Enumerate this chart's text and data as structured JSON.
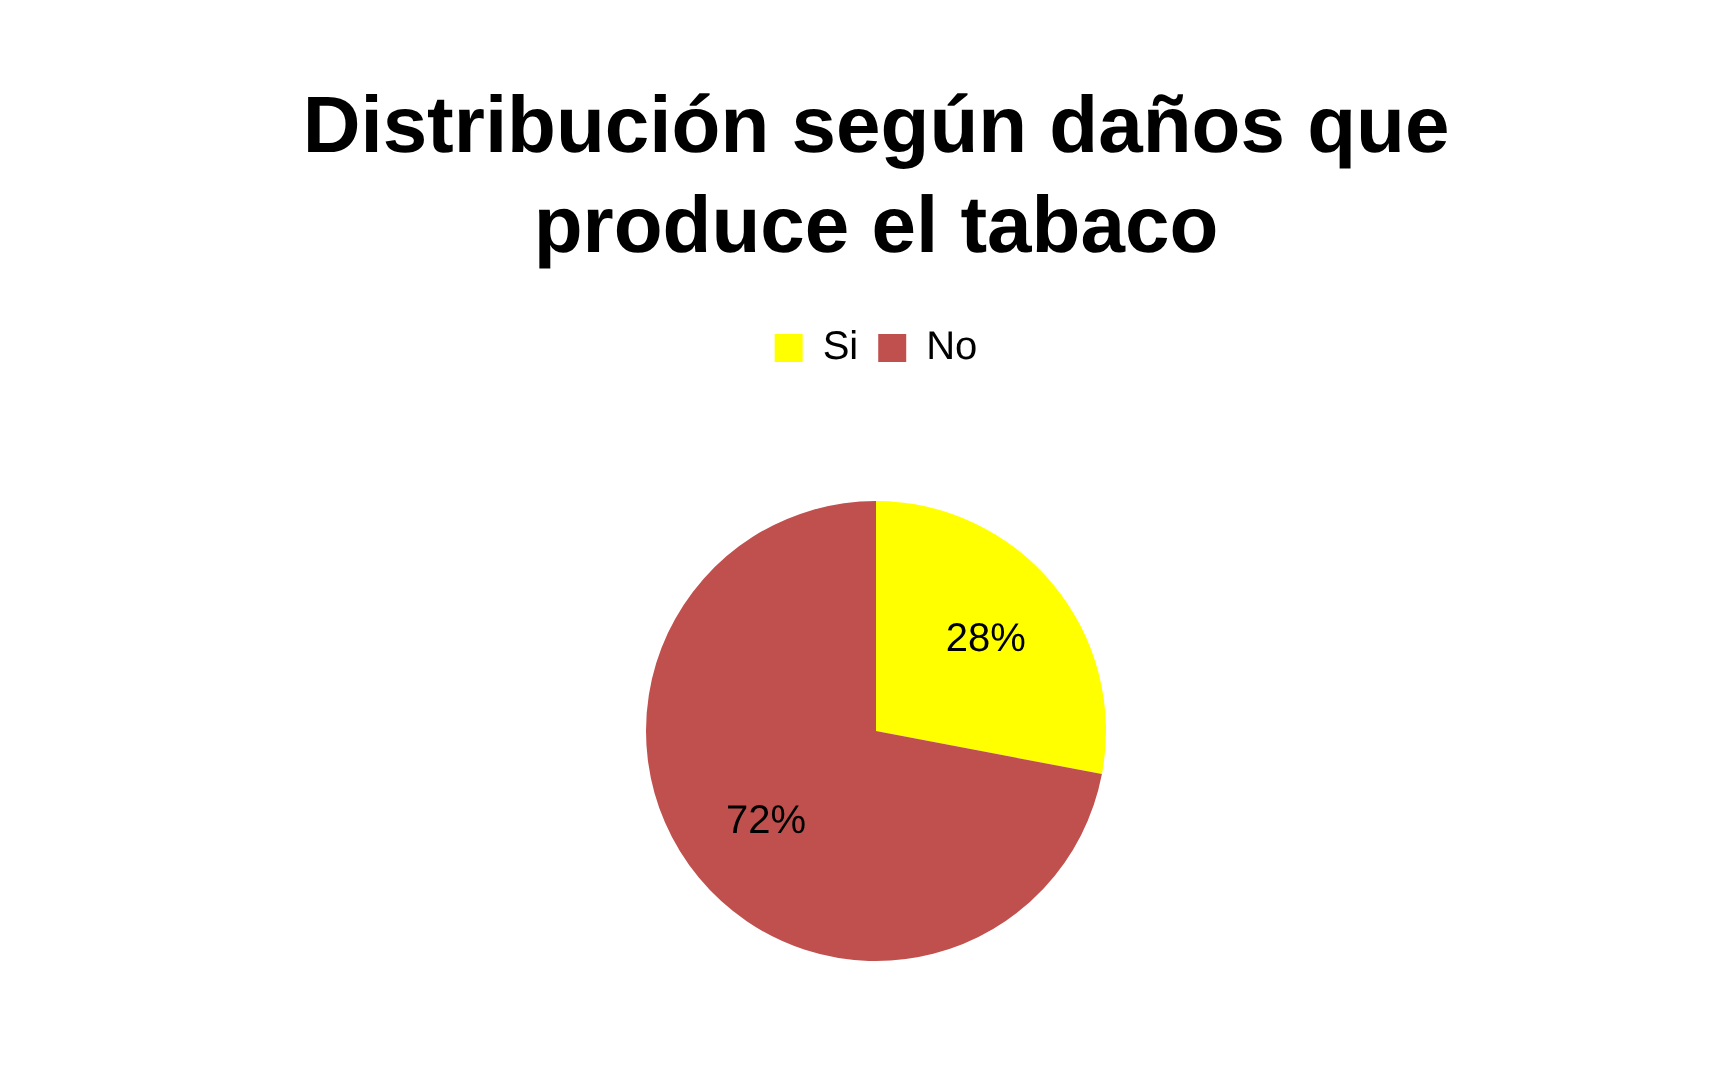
{
  "chart_data": {
    "type": "pie",
    "title": "Distribución según daños que produce el tabaco",
    "categories": [
      "Si",
      "No"
    ],
    "values": [
      28,
      72
    ],
    "colors": [
      "#ffff00",
      "#c0504d"
    ],
    "legend": "top",
    "value_labels": [
      "28%",
      "72%"
    ]
  }
}
